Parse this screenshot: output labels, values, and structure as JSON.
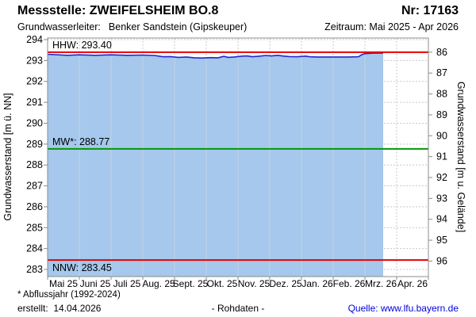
{
  "header": {
    "station_label": "Messstelle: ZWEIFELSHEIM BO.8",
    "number_label": "Nr: 17163",
    "aquifer_label": "Grundwasserleiter:",
    "aquifer_value": "Benker Sandstein (Gipskeuper)",
    "period_label": "Zeitraum: Mai 2025 - Apr 2026"
  },
  "chart_data": {
    "type": "area",
    "title": "",
    "x_categories": [
      "Mai 25",
      "Juni 25",
      "Juli 25",
      "Aug. 25",
      "Sept. 25",
      "Okt. 25",
      "Nov. 25",
      "Dez. 25",
      "Jan. 26",
      "Feb. 26",
      "Mrz. 26",
      "Apr. 26"
    ],
    "y_left": {
      "label": "Grundwasserstand [m ü. NN]",
      "min": 283,
      "max": 294,
      "ticks": [
        283,
        284,
        285,
        286,
        287,
        288,
        289,
        290,
        291,
        292,
        293,
        294
      ]
    },
    "y_right": {
      "label": "Grundwasserstand [m u. Gelände]",
      "ticks": [
        86,
        87,
        88,
        89,
        90,
        91,
        92,
        93,
        94,
        95,
        96
      ],
      "offset_elevation": 379.4
    },
    "grid": true,
    "series": [
      {
        "name": "Grundwasserstand - Rohdaten",
        "points": [
          [
            0,
            293.3
          ],
          [
            0.25,
            293.28
          ],
          [
            0.625,
            293.25
          ],
          [
            1.0,
            293.27
          ],
          [
            1.5,
            293.25
          ],
          [
            2.0,
            293.27
          ],
          [
            2.5,
            293.25
          ],
          [
            3.0,
            293.26
          ],
          [
            3.375,
            293.24
          ],
          [
            3.625,
            293.18
          ],
          [
            3.875,
            293.19
          ],
          [
            4.125,
            293.15
          ],
          [
            4.375,
            293.17
          ],
          [
            4.625,
            293.13
          ],
          [
            4.875,
            293.12
          ],
          [
            5.125,
            293.14
          ],
          [
            5.375,
            293.13
          ],
          [
            5.55,
            293.2
          ],
          [
            5.7,
            293.15
          ],
          [
            5.875,
            293.17
          ],
          [
            6.125,
            293.21
          ],
          [
            6.3,
            293.22
          ],
          [
            6.45,
            293.18
          ],
          [
            6.625,
            293.2
          ],
          [
            6.875,
            293.24
          ],
          [
            7.05,
            293.22
          ],
          [
            7.25,
            293.25
          ],
          [
            7.45,
            293.21
          ],
          [
            7.625,
            293.19
          ],
          [
            7.875,
            293.18
          ],
          [
            8.125,
            293.21
          ],
          [
            8.25,
            293.18
          ],
          [
            8.5,
            293.17
          ],
          [
            9.0,
            293.17
          ],
          [
            9.5,
            293.17
          ],
          [
            9.8,
            293.18
          ],
          [
            9.9,
            293.28
          ],
          [
            10.0,
            293.33
          ],
          [
            10.25,
            293.35
          ],
          [
            10.575,
            293.36
          ]
        ],
        "line_color": "#2424d0",
        "fill_color": "#a5c8ec"
      }
    ],
    "reference_lines": [
      {
        "name": "HHW",
        "label": "HHW: 293.40",
        "value": 293.4,
        "color": "#e60000",
        "label_position": "above"
      },
      {
        "name": "MW",
        "label": "MW*: 288.77",
        "value": 288.77,
        "color": "#009a00",
        "label_position": "above"
      },
      {
        "name": "NNW",
        "label": "NNW: 283.45",
        "value": 283.45,
        "color": "#e60000",
        "label_position": "below"
      }
    ],
    "colors": {
      "frame": "#8c8c8c",
      "gridline": "#c8c8c8",
      "overfill_gridline": "#c8d2e0",
      "tick_text": "#000000"
    }
  },
  "footer": {
    "footnote": "* Abflussjahr (1992-2024)",
    "created_label": "erstellt:",
    "created_date": "14.04.2026",
    "center_label": "- Rohdaten -",
    "source_label": "Quelle:",
    "source_url": "www.lfu.bayern.de",
    "link_color": "#0000e0"
  }
}
